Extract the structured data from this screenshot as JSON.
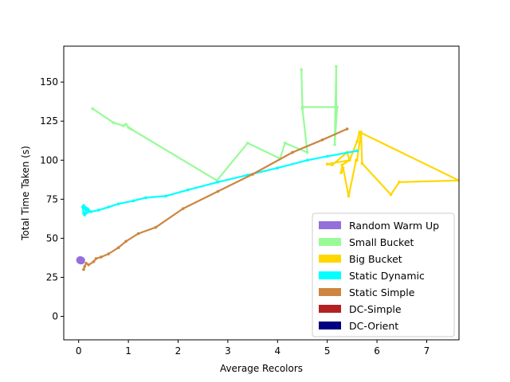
{
  "chart_data": {
    "type": "line",
    "title": "",
    "xlabel": "Average Recolors",
    "ylabel": "Total Time Taken (s)",
    "xlim": [
      -0.3,
      7.65
    ],
    "ylim": [
      -15,
      173
    ],
    "xticks": [
      0,
      1,
      2,
      3,
      4,
      5,
      6,
      7
    ],
    "yticks": [
      0,
      25,
      50,
      75,
      100,
      125,
      150
    ],
    "grid": false,
    "legend_position": "lower-right",
    "series": [
      {
        "name": "Random Warm Up",
        "color": "#9370DB",
        "marker": "large-dot",
        "points": [
          [
            0.03,
            36
          ],
          [
            0.05,
            35.8
          ]
        ]
      },
      {
        "name": "Small Bucket",
        "color": "#98FB98",
        "points": [
          [
            0.28,
            133
          ],
          [
            0.7,
            124
          ],
          [
            0.9,
            122
          ],
          [
            0.95,
            123
          ],
          [
            1.0,
            121
          ],
          [
            1.05,
            120
          ],
          [
            2.78,
            87
          ],
          [
            3.4,
            111
          ],
          [
            4.05,
            101
          ],
          [
            4.15,
            111
          ],
          [
            4.6,
            105
          ],
          [
            4.5,
            133
          ],
          [
            4.48,
            158
          ],
          [
            4.5,
            134
          ],
          [
            5.18,
            134
          ],
          [
            5.18,
            160
          ],
          [
            5.15,
            110
          ],
          [
            5.2,
            134
          ]
        ]
      },
      {
        "name": "Big Bucket",
        "color": "#FFD700",
        "points": [
          [
            5.6,
            100
          ],
          [
            5.68,
            118
          ],
          [
            5.7,
            98
          ],
          [
            6.28,
            78
          ],
          [
            6.45,
            86
          ],
          [
            7.65,
            87
          ],
          [
            5.65,
            118
          ],
          [
            5.6,
            112
          ],
          [
            5.45,
            100
          ],
          [
            5.4,
            105
          ],
          [
            5.1,
            97
          ],
          [
            5.0,
            97.5
          ],
          [
            5.45,
            100
          ],
          [
            5.3,
            97
          ],
          [
            5.28,
            92
          ],
          [
            5.32,
            95
          ],
          [
            5.43,
            77
          ],
          [
            5.58,
            100
          ]
        ]
      },
      {
        "name": "Static Dynamic",
        "color": "#00FFFF",
        "points": [
          [
            0.1,
            66
          ],
          [
            0.08,
            70
          ],
          [
            0.15,
            68
          ],
          [
            0.12,
            65
          ],
          [
            0.2,
            67
          ],
          [
            0.1,
            71
          ],
          [
            0.18,
            69
          ],
          [
            0.25,
            67
          ],
          [
            0.4,
            68
          ],
          [
            0.6,
            70
          ],
          [
            0.8,
            72
          ],
          [
            1.1,
            74
          ],
          [
            1.35,
            76
          ],
          [
            1.75,
            77
          ],
          [
            2.2,
            81
          ],
          [
            2.8,
            86
          ],
          [
            3.4,
            90.5
          ],
          [
            4.0,
            95
          ],
          [
            4.6,
            100
          ],
          [
            5.0,
            102.5
          ],
          [
            5.6,
            106
          ]
        ]
      },
      {
        "name": "Static Simple",
        "color": "#CD853F",
        "points": [
          [
            0.1,
            30
          ],
          [
            0.12,
            32
          ],
          [
            0.15,
            34
          ],
          [
            0.2,
            33
          ],
          [
            0.3,
            35
          ],
          [
            0.35,
            37
          ],
          [
            0.45,
            38
          ],
          [
            0.6,
            40
          ],
          [
            0.8,
            44
          ],
          [
            0.95,
            48
          ],
          [
            1.2,
            53
          ],
          [
            1.55,
            57
          ],
          [
            2.1,
            69
          ],
          [
            2.8,
            80
          ],
          [
            3.5,
            91
          ],
          [
            4.3,
            105
          ],
          [
            4.9,
            113
          ],
          [
            5.4,
            120
          ]
        ]
      },
      {
        "name": "DC-Simple",
        "color": "#B22222",
        "points": []
      },
      {
        "name": "DC-Orient",
        "color": "#000080",
        "points": []
      }
    ]
  }
}
